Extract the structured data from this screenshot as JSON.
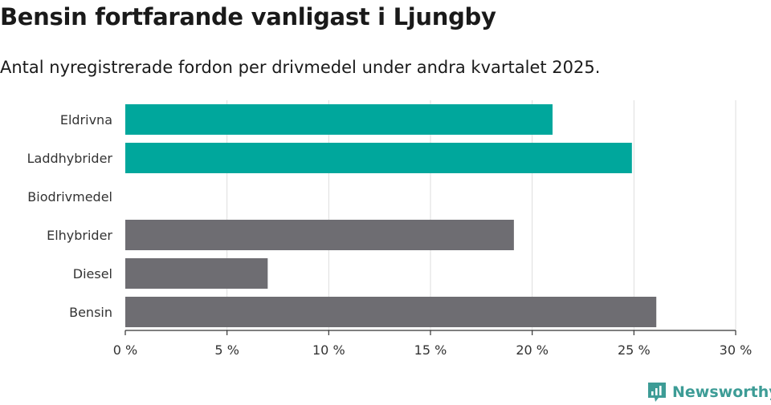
{
  "title": "Bensin fortfarande vanligast i Ljungby",
  "subtitle": "Antal nyregistrerade fordon per drivmedel under andra kvartalet 2025.",
  "brand": {
    "name": "Newsworthy",
    "icon": "newsworthy-logo-icon",
    "color": "#3d9c96"
  },
  "chart_data": {
    "type": "bar",
    "orientation": "horizontal",
    "categories": [
      "Eldrivna",
      "Laddhybrider",
      "Biodrivmedel",
      "Elhybrider",
      "Diesel",
      "Bensin"
    ],
    "values": [
      21.0,
      24.9,
      0,
      19.1,
      7.0,
      26.1
    ],
    "colors": [
      "#00a79c",
      "#00a79c",
      "#00a79c",
      "#6e6d72",
      "#6e6d72",
      "#6e6d72"
    ],
    "xlim": [
      0,
      30
    ],
    "xticks": [
      0,
      5,
      10,
      15,
      20,
      25,
      30
    ],
    "xtick_labels": [
      "0 %",
      "5 %",
      "10 %",
      "15 %",
      "20 %",
      "25 %",
      "30 %"
    ],
    "grid": true
  }
}
